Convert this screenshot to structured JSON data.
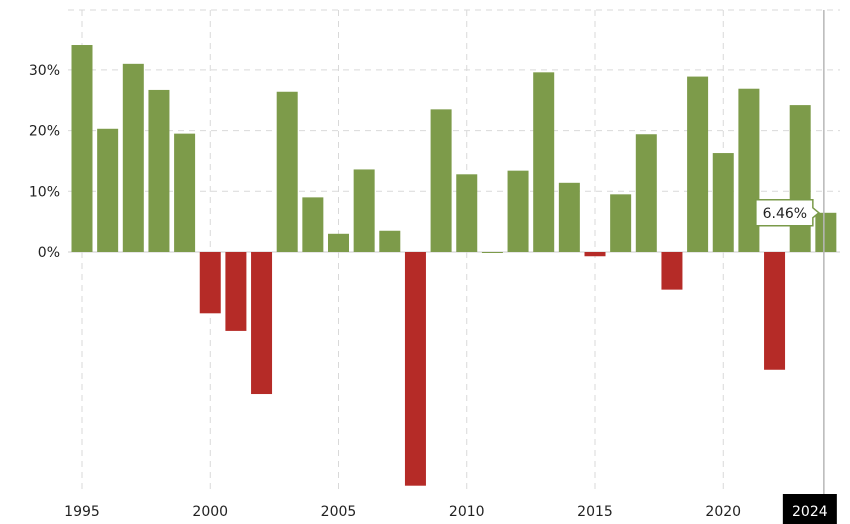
{
  "chart_data": {
    "type": "bar",
    "title": "",
    "xlabel": "",
    "ylabel": "",
    "x": [
      1995,
      1996,
      1997,
      1998,
      1999,
      2000,
      2001,
      2002,
      2003,
      2004,
      2005,
      2006,
      2007,
      2008,
      2009,
      2010,
      2011,
      2012,
      2013,
      2014,
      2015,
      2016,
      2017,
      2018,
      2019,
      2020,
      2021,
      2022,
      2023,
      2024
    ],
    "values": [
      34.1,
      20.3,
      31.0,
      26.7,
      19.5,
      -10.1,
      -13.0,
      -23.4,
      26.4,
      9.0,
      3.0,
      13.6,
      3.5,
      -38.5,
      23.5,
      12.8,
      0.0,
      13.4,
      29.6,
      11.4,
      -0.7,
      9.5,
      19.4,
      -6.2,
      28.9,
      16.3,
      26.9,
      -19.4,
      24.2,
      6.46
    ],
    "ylim": [
      -39.5,
      40
    ],
    "y_ticks": [
      0,
      10,
      20,
      30
    ],
    "y_tick_labels": [
      "0%",
      "10%",
      "20%",
      "30%"
    ],
    "x_ticks": [
      1995,
      2000,
      2005,
      2010,
      2015,
      2020
    ],
    "x_tick_labels": [
      "1995",
      "2000",
      "2005",
      "2010",
      "2015",
      "2020"
    ],
    "highlight": {
      "year": 2024,
      "label": "2024"
    },
    "tooltip": {
      "text": "6.46%"
    },
    "colors": {
      "positive": "#7d9b4a",
      "negative": "#b52b27"
    },
    "grid": true,
    "legend": "none"
  }
}
